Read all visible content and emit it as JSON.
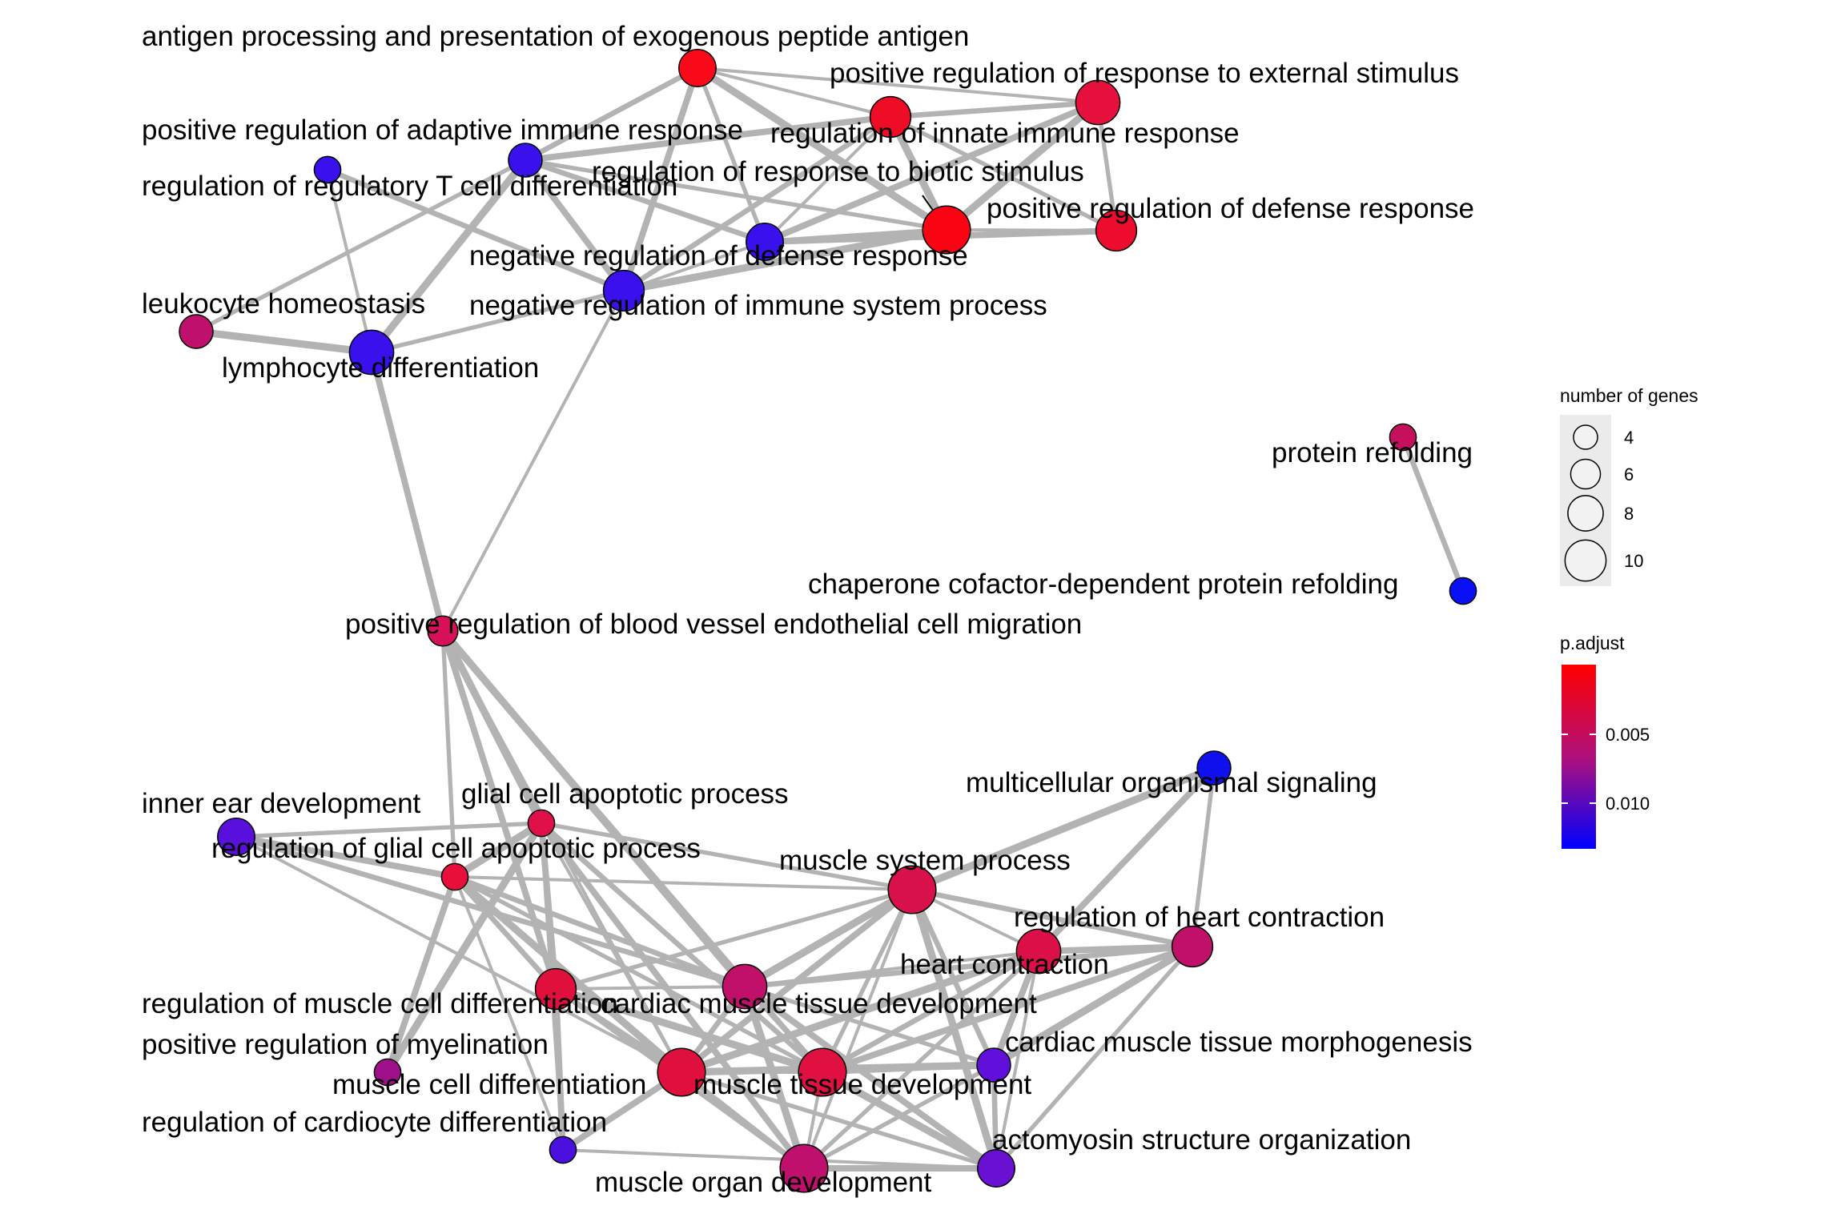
{
  "legend": {
    "size_title": "number of genes",
    "size_ticks": [
      4,
      6,
      8,
      10
    ],
    "color_title": "p.adjust",
    "color_ticks": [
      "0.005",
      "0.010"
    ],
    "color_high": "#FF0000",
    "color_low": "#0000FF"
  },
  "nodes": [
    {
      "id": "ap",
      "label": "antigen processing and presentation of exogenous peptide antigen",
      "genes": 6,
      "color": "#F80A18"
    },
    {
      "id": "prr",
      "label": "positive regulation of response to external stimulus",
      "genes": 8,
      "color": "#E5103C"
    },
    {
      "id": "rii",
      "label": "regulation of innate immune response",
      "genes": 7,
      "color": "#EF0C25"
    },
    {
      "id": "rbs",
      "label": "regulation of response to biotic stimulus",
      "genes": 9,
      "color": "#FA0414"
    },
    {
      "id": "prd",
      "label": "positive regulation of defense response",
      "genes": 7,
      "color": "#EE0C2E"
    },
    {
      "id": "pra",
      "label": "positive regulation of adaptive immune response",
      "genes": 5,
      "color": "#3A10EC"
    },
    {
      "id": "rrt",
      "label": "regulation of regulatory T cell differentiation",
      "genes": 3,
      "color": "#3A10EC"
    },
    {
      "id": "nrd",
      "label": "negative regulation of defense response",
      "genes": 6,
      "color": "#3A10EC"
    },
    {
      "id": "nri",
      "label": "negative regulation of immune system process",
      "genes": 7,
      "color": "#3A10EC"
    },
    {
      "id": "lh",
      "label": "leukocyte homeostasis",
      "genes": 5,
      "color": "#C0106E"
    },
    {
      "id": "ld",
      "label": "lymphocyte differentiation",
      "genes": 8,
      "color": "#3A10EC"
    },
    {
      "id": "prf",
      "label": "protein refolding",
      "genes": 3,
      "color": "#C5105E"
    },
    {
      "id": "ccp",
      "label": "chaperone cofactor-dependent protein refolding",
      "genes": 3,
      "color": "#0A10F5"
    },
    {
      "id": "pbv",
      "label": "positive regulation of blood vessel endothelial cell migration",
      "genes": 4,
      "color": "#D8105A"
    },
    {
      "id": "mos",
      "label": "multicellular organismal signaling",
      "genes": 5,
      "color": "#1010EE"
    },
    {
      "id": "ied",
      "label": "inner ear development",
      "genes": 6,
      "color": "#5A10DD"
    },
    {
      "id": "gca",
      "label": "glial cell apoptotic process",
      "genes": 3,
      "color": "#E0104A"
    },
    {
      "id": "rga",
      "label": "regulation of glial cell apoptotic process",
      "genes": 3,
      "color": "#E8103A"
    },
    {
      "id": "msp",
      "label": "muscle system process",
      "genes": 9,
      "color": "#D8104C"
    },
    {
      "id": "rhc",
      "label": "regulation of heart contraction",
      "genes": 7,
      "color": "#C0106A"
    },
    {
      "id": "hc",
      "label": "heart contraction",
      "genes": 8,
      "color": "#DC1048"
    },
    {
      "id": "rmd",
      "label": "regulation of muscle cell differentiation",
      "genes": 7,
      "color": "#E0103C"
    },
    {
      "id": "cmd",
      "label": "cardiac muscle tissue development",
      "genes": 8,
      "color": "#C0106A"
    },
    {
      "id": "prm",
      "label": "positive regulation of myelination",
      "genes": 3,
      "color": "#A0108A"
    },
    {
      "id": "cmm",
      "label": "cardiac muscle tissue morphogenesis",
      "genes": 5,
      "color": "#6010DA"
    },
    {
      "id": "mcd",
      "label": "muscle cell differentiation",
      "genes": 9,
      "color": "#E0103E"
    },
    {
      "id": "mtd",
      "label": "muscle tissue development",
      "genes": 9,
      "color": "#E01040"
    },
    {
      "id": "rcd",
      "label": "regulation of cardiocyte differentiation",
      "genes": 3,
      "color": "#4A10E0"
    },
    {
      "id": "aso",
      "label": "actomyosin structure organization",
      "genes": 6,
      "color": "#6A10D2"
    },
    {
      "id": "mod",
      "label": "muscle organ development",
      "genes": 9,
      "color": "#C0106E"
    }
  ],
  "edges": [
    [
      "ap",
      "prr"
    ],
    [
      "ap",
      "pra"
    ],
    [
      "ap",
      "rbs"
    ],
    [
      "ap",
      "nrd"
    ],
    [
      "ap",
      "nri"
    ],
    [
      "ap",
      "rii"
    ],
    [
      "rii",
      "prr"
    ],
    [
      "rii",
      "rbs"
    ],
    [
      "rii",
      "prd"
    ],
    [
      "rii",
      "pra"
    ],
    [
      "rii",
      "nrd"
    ],
    [
      "rii",
      "nri"
    ],
    [
      "prr",
      "rbs"
    ],
    [
      "prr",
      "prd"
    ],
    [
      "prr",
      "nrd"
    ],
    [
      "rbs",
      "prd"
    ],
    [
      "rbs",
      "nrd"
    ],
    [
      "rbs",
      "nri"
    ],
    [
      "rbs",
      "pra"
    ],
    [
      "prd",
      "nrd"
    ],
    [
      "nrd",
      "nri"
    ],
    [
      "nrd",
      "pra"
    ],
    [
      "pra",
      "ld"
    ],
    [
      "pra",
      "lh"
    ],
    [
      "pra",
      "nri"
    ],
    [
      "rrt",
      "ld"
    ],
    [
      "rrt",
      "nri"
    ],
    [
      "lh",
      "ld"
    ],
    [
      "ld",
      "nri"
    ],
    [
      "ld",
      "pbv"
    ],
    [
      "nri",
      "pbv"
    ],
    [
      "prf",
      "ccp"
    ],
    [
      "pbv",
      "gca"
    ],
    [
      "pbv",
      "rga"
    ],
    [
      "pbv",
      "rmd"
    ],
    [
      "pbv",
      "mcd"
    ],
    [
      "pbv",
      "mtd"
    ],
    [
      "pbv",
      "cmd"
    ],
    [
      "ied",
      "gca"
    ],
    [
      "ied",
      "rga"
    ],
    [
      "ied",
      "mcd"
    ],
    [
      "ied",
      "cmd"
    ],
    [
      "gca",
      "rga"
    ],
    [
      "gca",
      "msp"
    ],
    [
      "gca",
      "rmd"
    ],
    [
      "gca",
      "mcd"
    ],
    [
      "gca",
      "mtd"
    ],
    [
      "gca",
      "prm"
    ],
    [
      "gca",
      "rcd"
    ],
    [
      "gca",
      "mod"
    ],
    [
      "rga",
      "msp"
    ],
    [
      "rga",
      "rmd"
    ],
    [
      "rga",
      "mcd"
    ],
    [
      "rga",
      "mtd"
    ],
    [
      "rga",
      "prm"
    ],
    [
      "rga",
      "rcd"
    ],
    [
      "rga",
      "cmd"
    ],
    [
      "mos",
      "msp"
    ],
    [
      "mos",
      "rhc"
    ],
    [
      "mos",
      "hc"
    ],
    [
      "msp",
      "hc"
    ],
    [
      "msp",
      "rhc"
    ],
    [
      "msp",
      "cmd"
    ],
    [
      "msp",
      "mtd"
    ],
    [
      "msp",
      "mcd"
    ],
    [
      "msp",
      "mod"
    ],
    [
      "msp",
      "cmm"
    ],
    [
      "msp",
      "aso"
    ],
    [
      "msp",
      "rmd"
    ],
    [
      "hc",
      "rhc"
    ],
    [
      "hc",
      "cmd"
    ],
    [
      "hc",
      "mtd"
    ],
    [
      "hc",
      "mcd"
    ],
    [
      "hc",
      "mod"
    ],
    [
      "hc",
      "cmm"
    ],
    [
      "hc",
      "aso"
    ],
    [
      "rhc",
      "cmd"
    ],
    [
      "rhc",
      "cmm"
    ],
    [
      "rhc",
      "aso"
    ],
    [
      "rhc",
      "mtd"
    ],
    [
      "rmd",
      "cmd"
    ],
    [
      "rmd",
      "mcd"
    ],
    [
      "rmd",
      "mtd"
    ],
    [
      "rmd",
      "mod"
    ],
    [
      "rmd",
      "rcd"
    ],
    [
      "cmd",
      "mtd"
    ],
    [
      "cmd",
      "mcd"
    ],
    [
      "cmd",
      "mod"
    ],
    [
      "cmd",
      "cmm"
    ],
    [
      "cmd",
      "aso"
    ],
    [
      "mcd",
      "mtd"
    ],
    [
      "mcd",
      "mod"
    ],
    [
      "mcd",
      "cmm"
    ],
    [
      "mcd",
      "aso"
    ],
    [
      "mcd",
      "rcd"
    ],
    [
      "mtd",
      "mod"
    ],
    [
      "mtd",
      "cmm"
    ],
    [
      "mtd",
      "aso"
    ],
    [
      "mod",
      "cmm"
    ],
    [
      "mod",
      "aso"
    ],
    [
      "rcd",
      "aso"
    ],
    [
      "cmm",
      "aso"
    ]
  ]
}
